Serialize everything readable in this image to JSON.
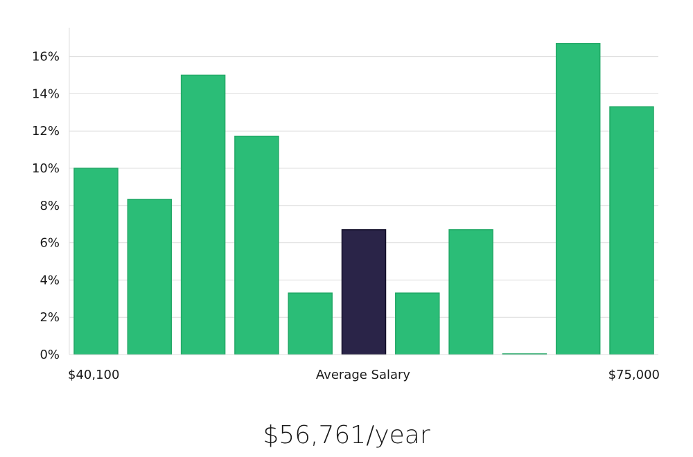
{
  "chart_data": {
    "type": "bar",
    "values": [
      10.0,
      8.33,
      15.0,
      11.72,
      3.3,
      6.7,
      3.3,
      6.7,
      0.0,
      16.7,
      13.3
    ],
    "highlight_index": 5,
    "ylim": [
      0,
      17.5
    ],
    "yticks": [
      0,
      2,
      4,
      6,
      8,
      10,
      12,
      14,
      16
    ],
    "ytick_format": "%",
    "grid": true,
    "xlabel_left": "$40,100",
    "xlabel_center": "Average Salary",
    "xlabel_right": "$75,000"
  },
  "colors": {
    "bar": "#2bbd77",
    "bar_edge": "#22a866",
    "highlight": "#2a2448",
    "highlight_edge": "#120f28",
    "grid": "#dcdcdc",
    "axis": "#dddddd"
  },
  "summary": {
    "average_salary": "$56,761/year"
  }
}
